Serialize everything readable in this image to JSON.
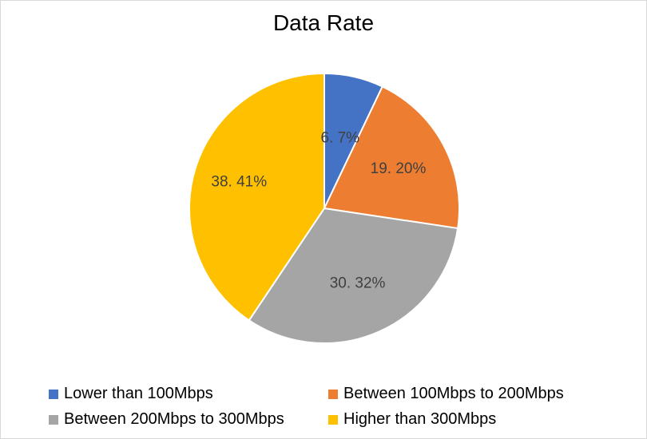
{
  "chart_data": {
    "type": "pie",
    "title": "Data Rate",
    "categories": [
      "Lower than 100Mbps",
      "Between 100Mbps to 200Mbps",
      "Between 200Mbps to 300Mbps",
      "Higher than 300Mbps"
    ],
    "values": [
      6.7,
      19.2,
      30.32,
      38.41
    ],
    "data_labels": [
      "6. 7%",
      "19. 20%",
      "30. 32%",
      "38. 41%"
    ],
    "colors": [
      "#4472c4",
      "#ed7d31",
      "#a5a5a5",
      "#ffc000"
    ],
    "legend_position": "bottom"
  }
}
